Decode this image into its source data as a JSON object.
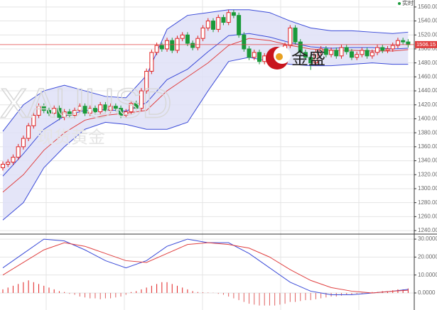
{
  "chart_data": {
    "type": "candlestick",
    "live_label": "实时",
    "watermark": "XAUUSD",
    "watermark_cn": "现货黄金",
    "logo": "金盛",
    "up_color": "#e02020",
    "down_color": "#1a9a3a",
    "band_color": "#3b4bd8",
    "ma_color": "#e04040",
    "ylim": [
      1235,
      1570
    ],
    "yticks": [
      {
        "value": 1240,
        "label": "1240.00"
      },
      {
        "value": 1260,
        "label": "1260.00"
      },
      {
        "value": 1280,
        "label": "1280.00"
      },
      {
        "value": 1300,
        "label": "1300.00"
      },
      {
        "value": 1320,
        "label": "1320.00"
      },
      {
        "value": 1340,
        "label": "1340.00"
      },
      {
        "value": 1360,
        "label": "1360.00"
      },
      {
        "value": 1380,
        "label": "1380.00"
      },
      {
        "value": 1400,
        "label": "1400.00"
      },
      {
        "value": 1420,
        "label": "1420.00"
      },
      {
        "value": 1440,
        "label": "1440.00"
      },
      {
        "value": 1460,
        "label": "1460.00"
      },
      {
        "value": 1480,
        "label": "1480.00"
      },
      {
        "value": 1500,
        "label": "1500.00"
      },
      {
        "value": 1520,
        "label": "1520.00"
      },
      {
        "value": 1540,
        "label": "1540.00"
      },
      {
        "value": 1560,
        "label": "1560.00"
      }
    ],
    "candles": {
      "open": [
        1330,
        1335,
        1338,
        1345,
        1360,
        1372,
        1390,
        1405,
        1418,
        1412,
        1408,
        1415,
        1402,
        1410,
        1405,
        1412,
        1418,
        1408,
        1415,
        1410,
        1420,
        1412,
        1418,
        1415,
        1405,
        1410,
        1422,
        1415,
        1440,
        1468,
        1495,
        1505,
        1500,
        1512,
        1498,
        1515,
        1520,
        1508,
        1502,
        1515,
        1530,
        1540,
        1528,
        1545,
        1538,
        1552,
        1548,
        1520,
        1500,
        1488,
        1495,
        1482,
        1490,
        1485,
        1498,
        1492,
        1505,
        1530,
        1510,
        1495,
        1488,
        1480,
        1495,
        1500,
        1492,
        1498,
        1490,
        1502,
        1496,
        1488,
        1492,
        1498,
        1490,
        1495,
        1502,
        1498,
        1500,
        1505,
        1512,
        1510
      ],
      "high": [
        1339,
        1342,
        1349,
        1364,
        1376,
        1394,
        1409,
        1422,
        1422,
        1416,
        1419,
        1419,
        1414,
        1414,
        1416,
        1422,
        1422,
        1419,
        1419,
        1424,
        1424,
        1422,
        1422,
        1419,
        1414,
        1426,
        1426,
        1444,
        1472,
        1499,
        1509,
        1509,
        1516,
        1516,
        1519,
        1524,
        1524,
        1512,
        1519,
        1534,
        1544,
        1544,
        1549,
        1549,
        1556,
        1556,
        1552,
        1524,
        1504,
        1499,
        1499,
        1494,
        1494,
        1502,
        1502,
        1509,
        1534,
        1534,
        1514,
        1499,
        1492,
        1499,
        1504,
        1504,
        1502,
        1502,
        1506,
        1506,
        1500,
        1496,
        1502,
        1502,
        1499,
        1506,
        1506,
        1504,
        1509,
        1516,
        1516,
        1514
      ],
      "low": [
        1326,
        1331,
        1334,
        1341,
        1356,
        1368,
        1386,
        1401,
        1408,
        1404,
        1404,
        1398,
        1398,
        1401,
        1401,
        1408,
        1404,
        1404,
        1406,
        1406,
        1408,
        1408,
        1411,
        1401,
        1401,
        1406,
        1411,
        1411,
        1436,
        1464,
        1491,
        1496,
        1496,
        1494,
        1494,
        1511,
        1504,
        1498,
        1498,
        1511,
        1526,
        1524,
        1524,
        1534,
        1534,
        1544,
        1516,
        1496,
        1484,
        1484,
        1478,
        1478,
        1481,
        1481,
        1488,
        1488,
        1501,
        1506,
        1491,
        1484,
        1470,
        1476,
        1491,
        1488,
        1488,
        1486,
        1486,
        1492,
        1484,
        1484,
        1488,
        1486,
        1486,
        1491,
        1494,
        1494,
        1496,
        1501,
        1506,
        1502
      ],
      "close": [
        1335,
        1338,
        1345,
        1360,
        1372,
        1390,
        1405,
        1418,
        1412,
        1408,
        1415,
        1402,
        1410,
        1405,
        1412,
        1418,
        1408,
        1415,
        1410,
        1420,
        1412,
        1418,
        1415,
        1405,
        1410,
        1422,
        1415,
        1440,
        1468,
        1495,
        1505,
        1500,
        1512,
        1498,
        1515,
        1520,
        1508,
        1502,
        1515,
        1530,
        1540,
        1528,
        1545,
        1538,
        1552,
        1548,
        1520,
        1500,
        1488,
        1495,
        1482,
        1490,
        1485,
        1498,
        1492,
        1505,
        1530,
        1510,
        1495,
        1488,
        1480,
        1495,
        1500,
        1492,
        1498,
        1490,
        1502,
        1496,
        1488,
        1492,
        1498,
        1490,
        1495,
        1502,
        1498,
        1500,
        1505,
        1512,
        1510,
        1506.15
      ]
    },
    "bands": {
      "x": [
        0,
        4,
        8,
        12,
        16,
        20,
        24,
        28,
        32,
        36,
        40,
        44,
        48,
        52,
        56,
        60,
        64,
        68,
        72,
        76,
        79
      ],
      "upper": [
        1382,
        1420,
        1440,
        1448,
        1440,
        1432,
        1430,
        1462,
        1528,
        1548,
        1552,
        1556,
        1556,
        1552,
        1540,
        1530,
        1526,
        1526,
        1524,
        1522,
        1524
      ],
      "middle": [
        1318,
        1350,
        1385,
        1404,
        1412,
        1413,
        1411,
        1423,
        1456,
        1471,
        1496,
        1519,
        1522,
        1517,
        1509,
        1503,
        1501,
        1502,
        1502,
        1500,
        1501
      ],
      "lower": [
        1255,
        1280,
        1330,
        1360,
        1385,
        1395,
        1392,
        1385,
        1385,
        1395,
        1440,
        1482,
        1488,
        1482,
        1478,
        1476,
        1476,
        1478,
        1480,
        1478,
        1478
      ],
      "ma": [
        1295,
        1320,
        1355,
        1380,
        1398,
        1405,
        1408,
        1412,
        1440,
        1460,
        1480,
        1505,
        1515,
        1512,
        1505,
        1500,
        1498,
        1498,
        1497,
        1497,
        1499
      ]
    },
    "macd": {
      "ylim": [
        -9.5,
        32.8
      ],
      "yticks": [
        {
          "value": 0,
          "label": "0.0000"
        },
        {
          "value": 10,
          "label": "10.0000"
        },
        {
          "value": 20,
          "label": "20.0000"
        },
        {
          "value": 30,
          "label": "30.0000"
        }
      ],
      "x": [
        0,
        4,
        8,
        12,
        16,
        20,
        24,
        28,
        32,
        36,
        40,
        44,
        48,
        52,
        56,
        60,
        64,
        68,
        72,
        76,
        79
      ],
      "dif": [
        14,
        22,
        30,
        29,
        24,
        18,
        14,
        18,
        26,
        30,
        28,
        28,
        22,
        14,
        6,
        1,
        -1,
        -1,
        0,
        1,
        2
      ],
      "dea": [
        10,
        17,
        24,
        28,
        26,
        22,
        18,
        17,
        22,
        27,
        28,
        27,
        25,
        20,
        13,
        7,
        3,
        1,
        0,
        1,
        1.5
      ],
      "hist": [
        2,
        3,
        4,
        5,
        6,
        7,
        6,
        5,
        4,
        3,
        2,
        1,
        0.5,
        -0.5,
        -1,
        -2,
        -2.5,
        -3,
        -3,
        -3.5,
        -3,
        -3,
        -2.5,
        -2,
        -1,
        0.5,
        1,
        2,
        3,
        4,
        5,
        6,
        6,
        5,
        4,
        3,
        2,
        1,
        0.5,
        0.3,
        0.2,
        0.1,
        -0.5,
        -1,
        -2,
        -3,
        -4,
        -5,
        -6,
        -6.5,
        -7,
        -7,
        -7,
        -7,
        -6.5,
        -6,
        -5,
        -5,
        -4.5,
        -4,
        -4,
        -3.5,
        -3,
        -2.5,
        -2,
        -2,
        -1.5,
        -1,
        -1,
        -0.5,
        -0.5,
        0,
        0.5,
        0.5,
        1,
        1,
        1.5,
        2,
        2,
        2.5
      ]
    }
  }
}
